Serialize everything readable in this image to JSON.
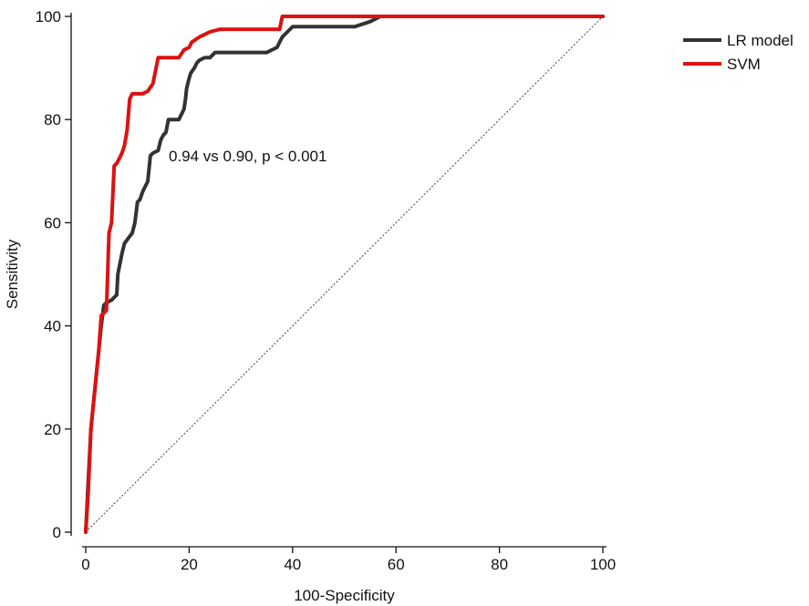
{
  "chart_data": {
    "type": "line",
    "title": "",
    "xlabel": "100-Specificity",
    "ylabel": "Sensitivity",
    "xlim": [
      0,
      100
    ],
    "ylim": [
      0,
      100
    ],
    "xticks": [
      0,
      20,
      40,
      60,
      80,
      100
    ],
    "yticks": [
      0,
      20,
      40,
      60,
      80,
      100
    ],
    "x_tick_labels": [
      "0",
      "20",
      "40",
      "60",
      "80",
      "100"
    ],
    "y_tick_labels": [
      "0",
      "20",
      "40",
      "60",
      "80",
      "100"
    ],
    "grid": false,
    "legend_position": "top-right",
    "annotation": "0.94 vs 0.90, p < 0.001",
    "reference_line": {
      "style": "dotted",
      "x": [
        0,
        100
      ],
      "y": [
        0,
        100
      ]
    },
    "series": [
      {
        "name": "LR model",
        "color": "#333333",
        "x": [
          0,
          0.5,
          1,
          2,
          3,
          3.5,
          4,
          5,
          6,
          6.2,
          7,
          7.5,
          9,
          9.5,
          10,
          10.5,
          11,
          12,
          12.5,
          13,
          14,
          14.5,
          15,
          15.5,
          16,
          17,
          18,
          19,
          19.3,
          19.5,
          20,
          20.3,
          21,
          21.5,
          22,
          23,
          24,
          25,
          26,
          27,
          35,
          37,
          37.5,
          38,
          39,
          40,
          41,
          50,
          52,
          55,
          57,
          60,
          70,
          80,
          90,
          100
        ],
        "y": [
          0,
          10,
          20,
          30,
          40,
          44,
          44.5,
          45,
          46,
          50,
          54,
          56,
          58,
          60,
          64,
          64.5,
          66,
          68,
          73,
          73.5,
          74,
          76,
          77,
          77.5,
          80,
          80,
          80,
          82,
          84,
          86,
          88,
          89,
          90,
          91,
          91.5,
          92,
          92,
          93,
          93,
          93,
          93,
          94,
          95,
          96,
          97,
          98,
          98,
          98,
          98,
          99,
          100,
          100,
          100,
          100,
          100,
          100
        ]
      },
      {
        "name": "SVM",
        "color": "#dd1111",
        "x": [
          0,
          0.5,
          1,
          2,
          2.5,
          3,
          4,
          4.5,
          5,
          5.5,
          6,
          6.5,
          7,
          7.5,
          8,
          8.5,
          9,
          10,
          11,
          12,
          13,
          14,
          15,
          16,
          18,
          19,
          20,
          20.5,
          22,
          23,
          24,
          26,
          27,
          30,
          37.5,
          38,
          40,
          50,
          60,
          70,
          80,
          90,
          100
        ],
        "y": [
          0,
          8,
          20,
          30,
          35,
          42,
          43,
          58,
          60,
          71,
          71.5,
          72.5,
          73.5,
          75,
          78,
          84,
          85,
          85,
          85,
          85.5,
          87,
          92,
          92,
          92,
          92,
          93.5,
          94,
          95,
          96,
          96.5,
          97,
          97.5,
          97.5,
          97.5,
          97.5,
          100,
          100,
          100,
          100,
          100,
          100,
          100,
          100
        ]
      }
    ]
  }
}
